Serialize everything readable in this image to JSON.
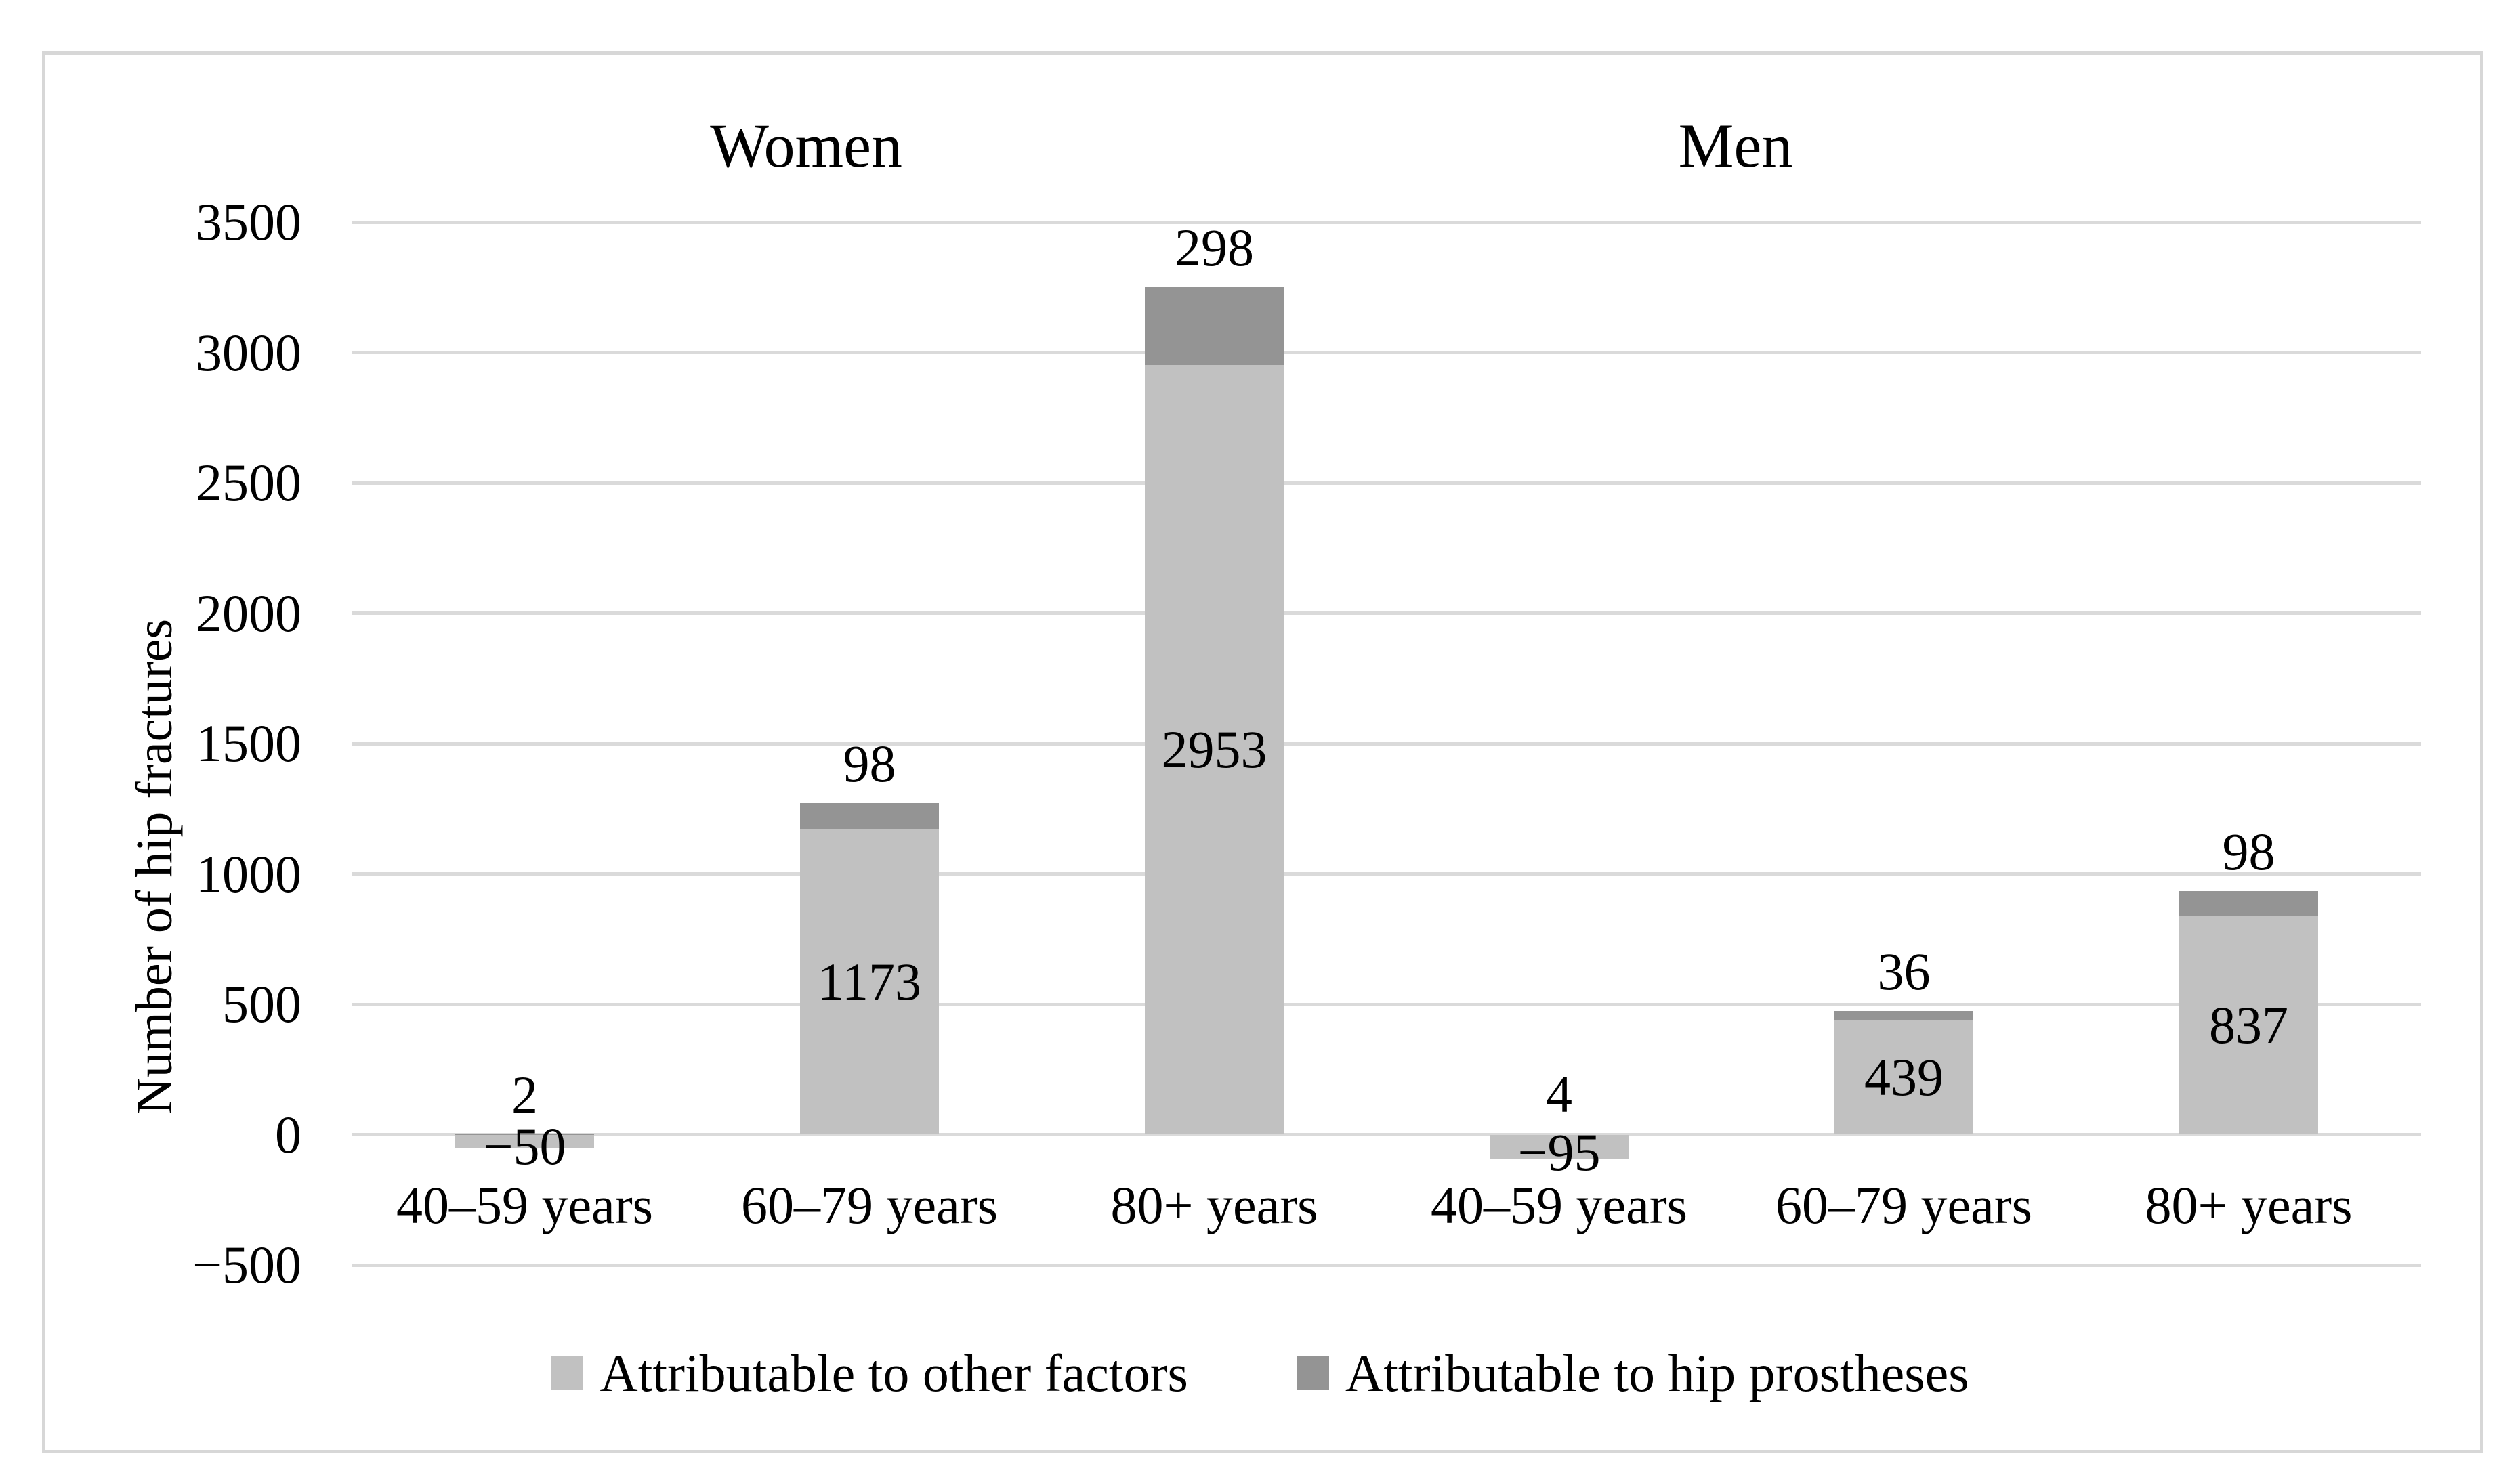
{
  "figure": {
    "group_titles": [
      "Women",
      "Men"
    ],
    "y_axis_title": "Number of hip fractures"
  },
  "chart_data": {
    "type": "bar",
    "stacked": true,
    "title": "",
    "xlabel": "",
    "ylabel": "Number of hip fractures",
    "ylim": [
      -500,
      3500
    ],
    "ytick_step": 500,
    "yticks": [
      3500,
      3000,
      2500,
      2000,
      1500,
      1000,
      500,
      0,
      -500
    ],
    "grid": "horizontal",
    "legend_position": "bottom",
    "groups": [
      "Women",
      "Men"
    ],
    "categories": [
      "40–59 years",
      "60–79 years",
      "80+ years",
      "40–59 years",
      "60–79 years",
      "80+ years"
    ],
    "series": [
      {
        "name": "Attributable to other factors",
        "color": "#c1c1c1",
        "values": [
          -50,
          1173,
          2953,
          -95,
          439,
          837
        ]
      },
      {
        "name": "Attributable to hip prostheses",
        "color": "#949494",
        "values": [
          2,
          98,
          298,
          4,
          36,
          98
        ]
      }
    ],
    "colors": {
      "gridline": "#dadada",
      "border": "#d7d7d7",
      "text": "#000000"
    }
  }
}
